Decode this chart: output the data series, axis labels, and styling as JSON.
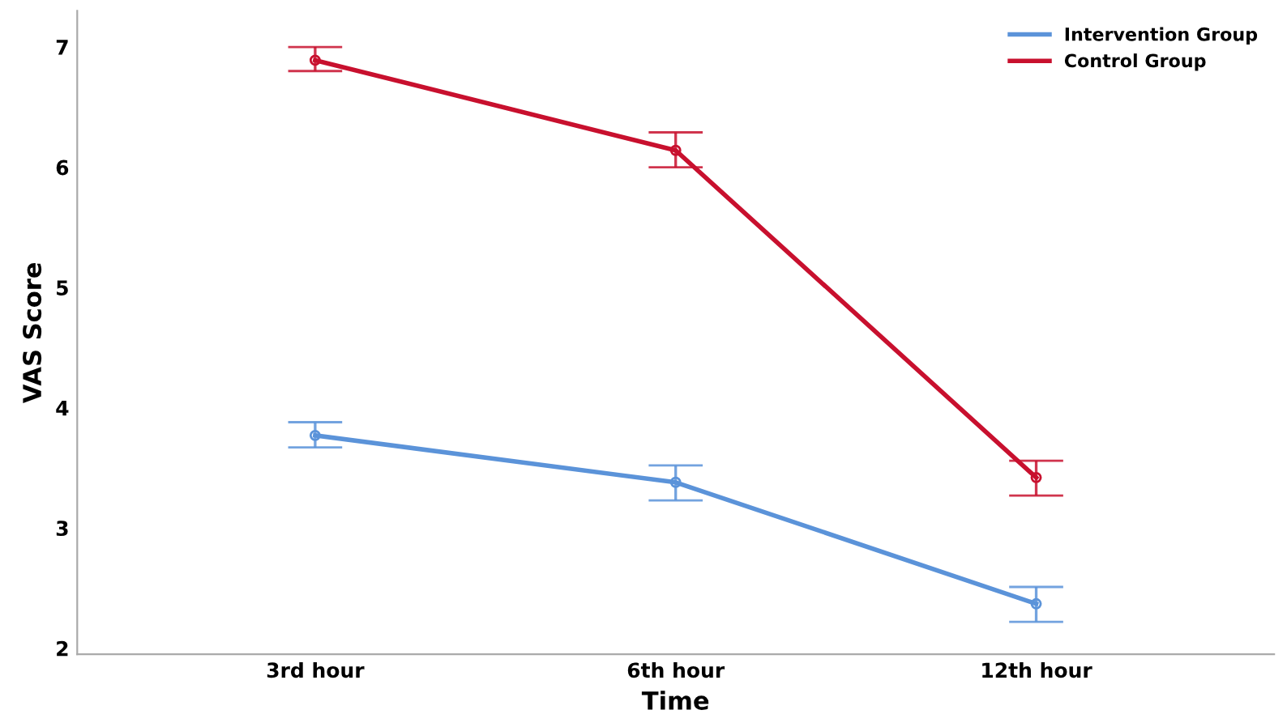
{
  "chart_data": {
    "type": "line",
    "xlabel": "Time",
    "ylabel": "VAS Score",
    "categories": [
      "3rd hour",
      "6th hour",
      "12th hour"
    ],
    "series": [
      {
        "name": "Intervention Group",
        "color": "#5b93d9",
        "values": [
          3.77,
          3.38,
          2.37
        ],
        "errors": [
          [
            3.67,
            3.88
          ],
          [
            3.23,
            3.52
          ],
          [
            2.22,
            2.51
          ]
        ]
      },
      {
        "name": "Control Group",
        "color": "#c8102e",
        "values": [
          6.89,
          6.14,
          3.42
        ],
        "errors": [
          [
            6.8,
            7.0
          ],
          [
            6.0,
            6.29
          ],
          [
            3.27,
            3.56
          ]
        ]
      }
    ],
    "ylim": [
      1.95,
      7.3
    ],
    "yticks": [
      2,
      3,
      4,
      5,
      6,
      7
    ],
    "grid": false,
    "legend": "top right",
    "marker": "circle",
    "line_style": "solid"
  }
}
